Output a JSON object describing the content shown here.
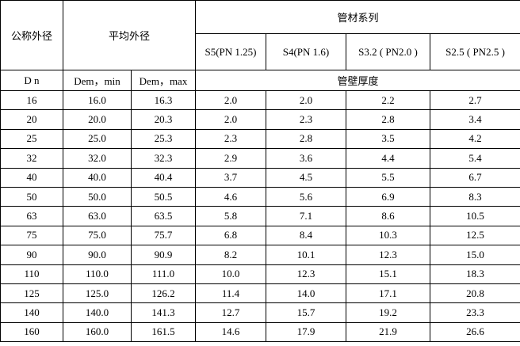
{
  "table": {
    "header": {
      "nominal_od": "公称外径",
      "mean_od": "平均外径",
      "series_group": "管材系列",
      "series": [
        "S5(PN 1.25)",
        "S4(PN 1.6)",
        "S3.2 ( PN2.0 )",
        "S2.5 ( PN2.5 )"
      ],
      "dn": "D n",
      "dem_min": "Dem，min",
      "dem_max": "Dem，max",
      "wall_thickness": "管壁厚度"
    },
    "rows": [
      [
        "16",
        "16.0",
        "16.3",
        "2.0",
        "2.0",
        "2.2",
        "2.7"
      ],
      [
        "20",
        "20.0",
        "20.3",
        "2.0",
        "2.3",
        "2.8",
        "3.4"
      ],
      [
        "25",
        "25.0",
        "25.3",
        "2.3",
        "2.8",
        "3.5",
        "4.2"
      ],
      [
        "32",
        "32.0",
        "32.3",
        "2.9",
        "3.6",
        "4.4",
        "5.4"
      ],
      [
        "40",
        "40.0",
        "40.4",
        "3.7",
        "4.5",
        "5.5",
        "6.7"
      ],
      [
        "50",
        "50.0",
        "50.5",
        "4.6",
        "5.6",
        "6.9",
        "8.3"
      ],
      [
        "63",
        "63.0",
        "63.5",
        "5.8",
        "7.1",
        "8.6",
        "10.5"
      ],
      [
        "75",
        "75.0",
        "75.7",
        "6.8",
        "8.4",
        "10.3",
        "12.5"
      ],
      [
        "90",
        "90.0",
        "90.9",
        "8.2",
        "10.1",
        "12.3",
        "15.0"
      ],
      [
        "110",
        "110.0",
        "111.0",
        "10.0",
        "12.3",
        "15.1",
        "18.3"
      ],
      [
        "125",
        "125.0",
        "126.2",
        "11.4",
        "14.0",
        "17.1",
        "20.8"
      ],
      [
        "140",
        "140.0",
        "141.3",
        "12.7",
        "15.7",
        "19.2",
        "23.3"
      ],
      [
        "160",
        "160.0",
        "161.5",
        "14.6",
        "17.9",
        "21.9",
        "26.6"
      ]
    ]
  }
}
